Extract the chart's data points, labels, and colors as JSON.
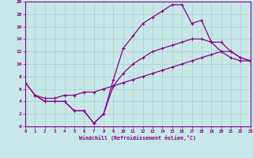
{
  "xlabel": "Windchill (Refroidissement éolien,°C)",
  "background_color": "#c8e8e8",
  "grid_color": "#aacccc",
  "line_color": "#880088",
  "xlim": [
    0,
    23
  ],
  "ylim": [
    0,
    20
  ],
  "xticks": [
    0,
    1,
    2,
    3,
    4,
    5,
    6,
    7,
    8,
    9,
    10,
    11,
    12,
    13,
    14,
    15,
    16,
    17,
    18,
    19,
    20,
    21,
    22,
    23
  ],
  "yticks": [
    0,
    2,
    4,
    6,
    8,
    10,
    12,
    14,
    16,
    18,
    20
  ],
  "curve1_x": [
    0,
    1,
    2,
    3,
    4,
    5,
    6,
    7,
    8,
    9,
    10,
    11,
    12,
    13,
    14,
    15,
    16,
    17,
    18,
    19,
    20,
    21,
    22,
    23
  ],
  "curve1_y": [
    7,
    5,
    4,
    4,
    4,
    2.5,
    2.5,
    0.5,
    2,
    7.5,
    12.5,
    14.5,
    16.5,
    17.5,
    18.5,
    19.5,
    19.5,
    16.5,
    17,
    13.5,
    12,
    12,
    11,
    10.5
  ],
  "curve2_x": [
    0,
    1,
    2,
    3,
    4,
    5,
    6,
    7,
    8,
    9,
    10,
    11,
    12,
    13,
    14,
    15,
    16,
    17,
    18,
    19,
    20,
    21,
    22,
    23
  ],
  "curve2_y": [
    7,
    5,
    4,
    4,
    4,
    2.5,
    2.5,
    0.5,
    2,
    6.5,
    8.5,
    10,
    11,
    12,
    12.5,
    13,
    13.5,
    14,
    14,
    13.5,
    13.5,
    12,
    11,
    10.5
  ],
  "curve3_x": [
    1,
    2,
    3,
    4,
    5,
    6,
    7,
    8,
    9,
    10,
    11,
    12,
    13,
    14,
    15,
    16,
    17,
    18,
    19,
    20,
    21,
    22,
    23
  ],
  "curve3_y": [
    5,
    4.5,
    4.5,
    5,
    5,
    5.5,
    5.5,
    6,
    6.5,
    7,
    7.5,
    8,
    8.5,
    9,
    9.5,
    10,
    10.5,
    11,
    11.5,
    12,
    11,
    10.5,
    10.5
  ]
}
